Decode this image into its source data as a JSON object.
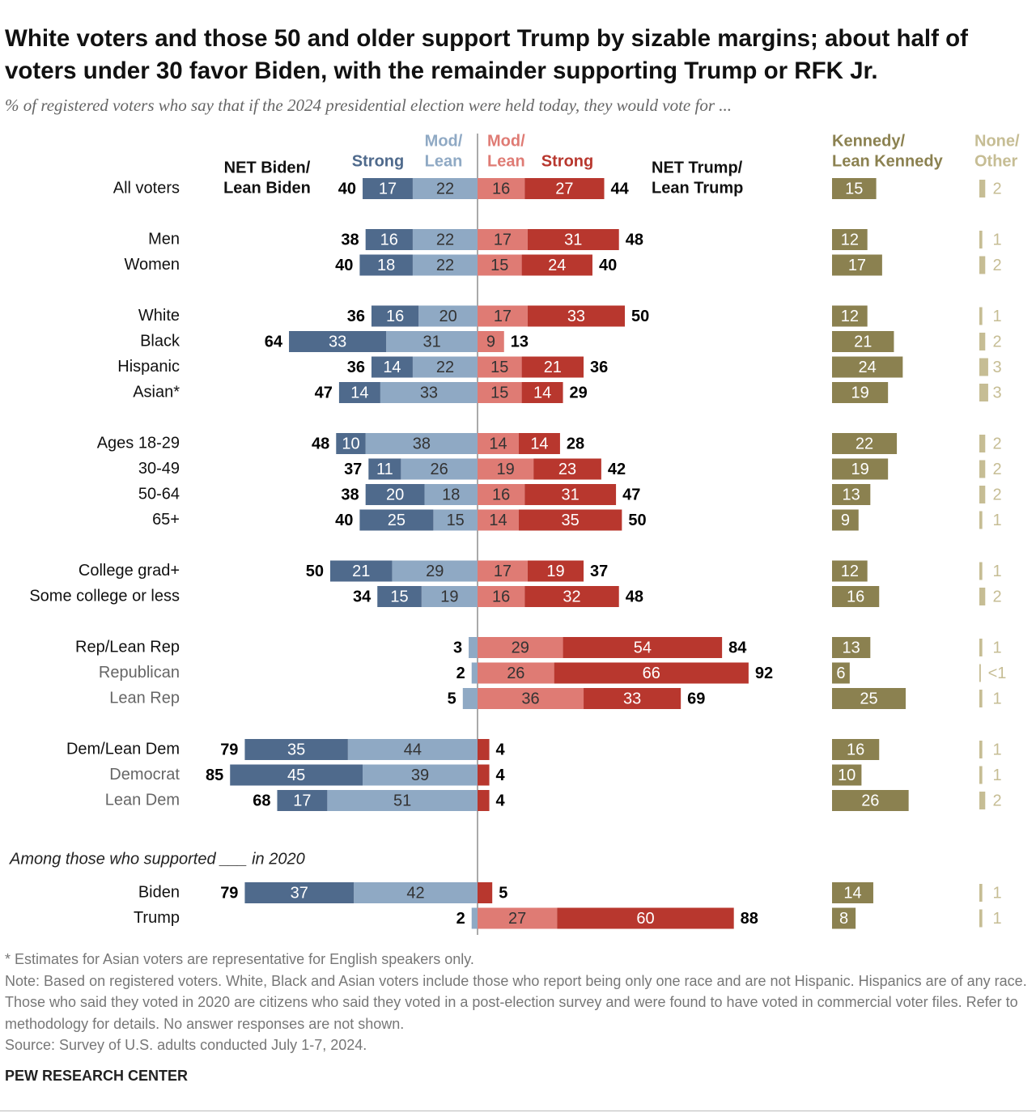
{
  "chart_data": {
    "type": "diverging_bar",
    "title": "White voters and those 50 and older support Trump by sizable margins; about half of voters under 30 favor Biden, with the remainder supporting Trump or RFK Jr.",
    "subtitle": "% of registered voters who say that if the 2024 presidential election were held today, they would vote for ...",
    "headers": {
      "net_biden": [
        "NET Biden/",
        "Lean Biden"
      ],
      "biden_strong": [
        "Strong"
      ],
      "biden_lean": [
        "Mod/",
        "Lean"
      ],
      "trump_lean": [
        "Mod/",
        "Lean"
      ],
      "trump_strong": [
        "Strong"
      ],
      "net_trump": [
        "NET Trump/",
        "Lean Trump"
      ],
      "kennedy": [
        "Kennedy/",
        "Lean Kennedy"
      ],
      "other": [
        "None/",
        "Other"
      ]
    },
    "colors": {
      "biden_strong": "#4f6a8c",
      "biden_lean": "#8fa9c4",
      "trump_lean": "#df7b74",
      "trump_strong": "#b8372e",
      "kennedy": "#8b8150",
      "other": "#c6bd94"
    },
    "groups": [
      {
        "rows": [
          {
            "label": "All voters",
            "net_biden": 40,
            "biden_strong": 17,
            "biden_lean": 22,
            "trump_lean": 16,
            "trump_strong": 27,
            "net_trump": 44,
            "kennedy": 15,
            "other": 2
          }
        ]
      },
      {
        "rows": [
          {
            "label": "Men",
            "net_biden": 38,
            "biden_strong": 16,
            "biden_lean": 22,
            "trump_lean": 17,
            "trump_strong": 31,
            "net_trump": 48,
            "kennedy": 12,
            "other": 1
          },
          {
            "label": "Women",
            "net_biden": 40,
            "biden_strong": 18,
            "biden_lean": 22,
            "trump_lean": 15,
            "trump_strong": 24,
            "net_trump": 40,
            "kennedy": 17,
            "other": 2
          }
        ]
      },
      {
        "rows": [
          {
            "label": "White",
            "net_biden": 36,
            "biden_strong": 16,
            "biden_lean": 20,
            "trump_lean": 17,
            "trump_strong": 33,
            "net_trump": 50,
            "kennedy": 12,
            "other": 1
          },
          {
            "label": "Black",
            "net_biden": 64,
            "biden_strong": 33,
            "biden_lean": 31,
            "trump_lean": 9,
            "trump_strong": null,
            "net_trump": 13,
            "kennedy": 21,
            "other": 2
          },
          {
            "label": "Hispanic",
            "net_biden": 36,
            "biden_strong": 14,
            "biden_lean": 22,
            "trump_lean": 15,
            "trump_strong": 21,
            "net_trump": 36,
            "kennedy": 24,
            "other": 3
          },
          {
            "label": "Asian*",
            "net_biden": 47,
            "biden_strong": 14,
            "biden_lean": 33,
            "trump_lean": 15,
            "trump_strong": 14,
            "net_trump": 29,
            "kennedy": 19,
            "other": 3
          }
        ]
      },
      {
        "rows": [
          {
            "label": "Ages 18-29",
            "net_biden": 48,
            "biden_strong": 10,
            "biden_lean": 38,
            "trump_lean": 14,
            "trump_strong": 14,
            "net_trump": 28,
            "kennedy": 22,
            "other": 2
          },
          {
            "label": "30-49",
            "net_biden": 37,
            "biden_strong": 11,
            "biden_lean": 26,
            "trump_lean": 19,
            "trump_strong": 23,
            "net_trump": 42,
            "kennedy": 19,
            "other": 2
          },
          {
            "label": "50-64",
            "net_biden": 38,
            "biden_strong": 20,
            "biden_lean": 18,
            "trump_lean": 16,
            "trump_strong": 31,
            "net_trump": 47,
            "kennedy": 13,
            "other": 2
          },
          {
            "label": "65+",
            "net_biden": 40,
            "biden_strong": 25,
            "biden_lean": 15,
            "trump_lean": 14,
            "trump_strong": 35,
            "net_trump": 50,
            "kennedy": 9,
            "other": 1
          }
        ]
      },
      {
        "rows": [
          {
            "label": "College grad+",
            "net_biden": 50,
            "biden_strong": 21,
            "biden_lean": 29,
            "trump_lean": 17,
            "trump_strong": 19,
            "net_trump": 37,
            "kennedy": 12,
            "other": 1
          },
          {
            "label": "Some college or less",
            "net_biden": 34,
            "biden_strong": 15,
            "biden_lean": 19,
            "trump_lean": 16,
            "trump_strong": 32,
            "net_trump": 48,
            "kennedy": 16,
            "other": 2
          }
        ]
      },
      {
        "rows": [
          {
            "label": "Rep/Lean Rep",
            "net_biden": 3,
            "biden_strong": null,
            "biden_lean": null,
            "trump_lean": 29,
            "trump_strong": 54,
            "net_trump": 84,
            "kennedy": 13,
            "other": 1
          },
          {
            "label": "Republican",
            "muted": true,
            "net_biden": 2,
            "biden_strong": null,
            "biden_lean": null,
            "trump_lean": 26,
            "trump_strong": 66,
            "net_trump": 92,
            "kennedy": 6,
            "other": 0.5,
            "other_label": "<1"
          },
          {
            "label": "Lean Rep",
            "muted": true,
            "net_biden": 5,
            "biden_strong": null,
            "biden_lean": null,
            "trump_lean": 36,
            "trump_strong": 33,
            "net_trump": 69,
            "kennedy": 25,
            "other": 1
          }
        ]
      },
      {
        "rows": [
          {
            "label": "Dem/Lean Dem",
            "net_biden": 79,
            "biden_strong": 35,
            "biden_lean": 44,
            "trump_lean": null,
            "trump_strong": null,
            "net_trump": 4,
            "kennedy": 16,
            "other": 1
          },
          {
            "label": "Democrat",
            "muted": true,
            "net_biden": 85,
            "biden_strong": 45,
            "biden_lean": 39,
            "trump_lean": null,
            "trump_strong": null,
            "net_trump": 4,
            "kennedy": 10,
            "other": 1
          },
          {
            "label": "Lean Dem",
            "muted": true,
            "net_biden": 68,
            "biden_strong": 17,
            "biden_lean": 51,
            "trump_lean": null,
            "trump_strong": null,
            "net_trump": 4,
            "kennedy": 26,
            "other": 2
          }
        ]
      },
      {
        "label": "Among those who supported ___ in 2020",
        "rows": [
          {
            "label": "Biden",
            "net_biden": 79,
            "biden_strong": 37,
            "biden_lean": 42,
            "trump_lean": null,
            "trump_strong": null,
            "net_trump": 5,
            "kennedy": 14,
            "other": 1
          },
          {
            "label": "Trump",
            "net_biden": 2,
            "biden_strong": null,
            "biden_lean": null,
            "trump_lean": 27,
            "trump_strong": 60,
            "net_trump": 88,
            "kennedy": 8,
            "other": 1
          }
        ]
      }
    ]
  },
  "notes": {
    "footnote": "* Estimates for Asian voters are representative for English speakers only.",
    "note": "Note: Based on registered voters. White, Black and Asian voters include those who report being only one race and are not Hispanic. Hispanics are of any race. Those who said they voted in 2020 are citizens who said they voted in a post-election survey and were found to have voted in commercial voter files. Refer to methodology for details. No answer responses are not shown.",
    "source": "Source: Survey of U.S. adults conducted July 1-7, 2024.",
    "org": "PEW RESEARCH CENTER"
  }
}
